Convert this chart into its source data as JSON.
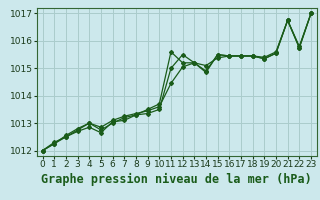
{
  "title": "Graphe pression niveau de la mer (hPa)",
  "bg_color": "#cce8ec",
  "grid_color": "#aacccc",
  "line_color": "#1a5c1a",
  "xlim_min": -0.5,
  "xlim_max": 23.5,
  "ylim_min": 1011.8,
  "ylim_max": 1017.2,
  "xticks": [
    0,
    1,
    2,
    3,
    4,
    5,
    6,
    7,
    8,
    9,
    10,
    11,
    12,
    13,
    14,
    15,
    16,
    17,
    18,
    19,
    20,
    21,
    22,
    23
  ],
  "yticks": [
    1012,
    1013,
    1014,
    1015,
    1016,
    1017
  ],
  "series": [
    [
      1012.0,
      1012.3,
      1012.5,
      1012.7,
      1012.85,
      1012.65,
      1013.05,
      1013.1,
      1013.3,
      1013.5,
      1013.7,
      1015.6,
      1015.2,
      1015.2,
      1014.9,
      1015.5,
      1015.45,
      1015.45,
      1015.45,
      1015.35,
      1015.55,
      1016.75,
      1015.75,
      1017.0
    ],
    [
      1012.0,
      1012.25,
      1012.5,
      1012.75,
      1013.0,
      1012.75,
      1013.0,
      1013.2,
      1013.3,
      1013.35,
      1013.5,
      1015.0,
      1015.5,
      1015.2,
      1014.85,
      1015.5,
      1015.45,
      1015.45,
      1015.45,
      1015.35,
      1015.55,
      1016.75,
      1015.75,
      1017.0
    ],
    [
      1012.0,
      1012.25,
      1012.55,
      1012.8,
      1013.0,
      1012.85,
      1013.1,
      1013.25,
      1013.35,
      1013.45,
      1013.6,
      1014.45,
      1015.05,
      1015.2,
      1015.1,
      1015.38,
      1015.45,
      1015.45,
      1015.45,
      1015.4,
      1015.6,
      1016.75,
      1015.8,
      1017.0
    ]
  ],
  "tick_fontsize": 6.5,
  "xlabel_fontsize": 8.5
}
